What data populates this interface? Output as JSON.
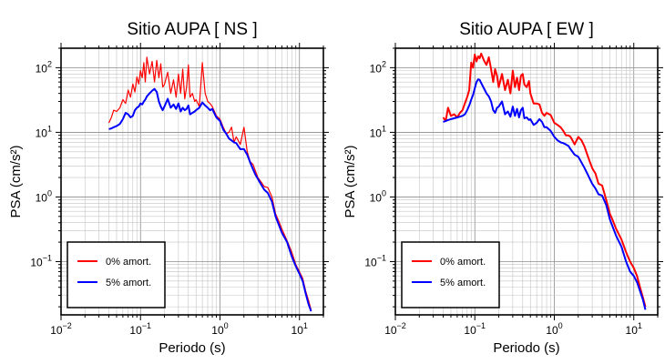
{
  "chart_data": [
    {
      "type": "line",
      "title": "Sitio AUPA [ NS ]",
      "xlabel": "Periodo (s)",
      "ylabel": "PSA (cm/s²)",
      "xscale": "log",
      "yscale": "log",
      "xlim": [
        0.01,
        20
      ],
      "ylim": [
        0.015,
        200
      ],
      "xticks": [
        0.01,
        0.1,
        1,
        10
      ],
      "xtick_labels": [
        [
          "10",
          "−2"
        ],
        [
          "10",
          "−1"
        ],
        [
          "10",
          "0"
        ],
        [
          "10",
          "1"
        ]
      ],
      "yticks": [
        0.1,
        1,
        10,
        100
      ],
      "ytick_labels": [
        [
          "10",
          "−1"
        ],
        [
          "10",
          "0"
        ],
        [
          "10",
          "1"
        ],
        [
          "10",
          "2"
        ]
      ],
      "grid": true,
      "legend_position": "bottom-left",
      "series": [
        {
          "name": "0% amort.",
          "color": "#ff0000",
          "x": [
            0.04,
            0.043,
            0.046,
            0.05,
            0.055,
            0.06,
            0.065,
            0.07,
            0.075,
            0.08,
            0.085,
            0.09,
            0.095,
            0.1,
            0.105,
            0.11,
            0.115,
            0.12,
            0.13,
            0.14,
            0.15,
            0.16,
            0.17,
            0.18,
            0.19,
            0.2,
            0.22,
            0.24,
            0.26,
            0.28,
            0.3,
            0.32,
            0.34,
            0.36,
            0.38,
            0.4,
            0.42,
            0.45,
            0.48,
            0.5,
            0.55,
            0.6,
            0.65,
            0.7,
            0.75,
            0.8,
            0.9,
            1.0,
            1.1,
            1.2,
            1.3,
            1.4,
            1.5,
            1.6,
            1.8,
            2.0,
            2.2,
            2.4,
            2.6,
            2.8,
            3.0,
            3.3,
            3.6,
            4.0,
            4.5,
            5.0,
            5.5,
            6.0,
            7.0,
            8.0,
            9.0,
            10.0,
            11.0,
            12.0,
            13.0,
            14.0
          ],
          "y": [
            14,
            17,
            22,
            21,
            24,
            32,
            28,
            45,
            35,
            56,
            42,
            72,
            56,
            90,
            70,
            120,
            60,
            145,
            80,
            125,
            60,
            130,
            70,
            115,
            50,
            55,
            85,
            40,
            65,
            35,
            80,
            40,
            95,
            33,
            50,
            110,
            35,
            40,
            30,
            32,
            25,
            120,
            40,
            30,
            28,
            25,
            18,
            16,
            12,
            9.5,
            10,
            12,
            7,
            8.5,
            6.5,
            12,
            5,
            3.5,
            3.2,
            2.5,
            2.0,
            1.7,
            1.45,
            1.4,
            1.0,
            0.55,
            0.42,
            0.32,
            0.21,
            0.14,
            0.09,
            0.07,
            0.055,
            0.035,
            0.025,
            0.018
          ]
        },
        {
          "name": "5% amort.",
          "color": "#0000ff",
          "x": [
            0.04,
            0.043,
            0.046,
            0.05,
            0.055,
            0.06,
            0.065,
            0.07,
            0.075,
            0.08,
            0.085,
            0.09,
            0.095,
            0.1,
            0.105,
            0.11,
            0.115,
            0.12,
            0.13,
            0.14,
            0.15,
            0.16,
            0.17,
            0.18,
            0.19,
            0.2,
            0.22,
            0.24,
            0.26,
            0.28,
            0.3,
            0.32,
            0.34,
            0.36,
            0.38,
            0.4,
            0.42,
            0.45,
            0.48,
            0.5,
            0.55,
            0.6,
            0.65,
            0.7,
            0.75,
            0.8,
            0.9,
            1.0,
            1.1,
            1.2,
            1.3,
            1.4,
            1.5,
            1.6,
            1.8,
            2.0,
            2.2,
            2.4,
            2.6,
            2.8,
            3.0,
            3.3,
            3.6,
            4.0,
            4.5,
            5.0,
            5.5,
            6.0,
            7.0,
            8.0,
            9.0,
            10.0,
            11.0,
            12.0,
            13.0,
            14.0
          ],
          "y": [
            11.2,
            11.5,
            12,
            12.5,
            13.5,
            16,
            20,
            19,
            17,
            18,
            22,
            24,
            25,
            28,
            27,
            30,
            32,
            36,
            40,
            44,
            47,
            42,
            30,
            25,
            22,
            25,
            33,
            24,
            27,
            23,
            28,
            21,
            24,
            22,
            23,
            26,
            19,
            20,
            21,
            22,
            24,
            29,
            26,
            24,
            22,
            23,
            17,
            15,
            11,
            9.5,
            8,
            7.5,
            7,
            6.8,
            5.5,
            5.5,
            4.5,
            3.4,
            2.7,
            2.2,
            1.9,
            1.55,
            1.3,
            1.15,
            0.85,
            0.5,
            0.37,
            0.28,
            0.2,
            0.12,
            0.085,
            0.065,
            0.05,
            0.032,
            0.022,
            0.017
          ]
        }
      ]
    },
    {
      "type": "line",
      "title": "Sitio AUPA [ EW ]",
      "xlabel": "Periodo (s)",
      "ylabel": "PSA (cm/s²)",
      "xscale": "log",
      "yscale": "log",
      "xlim": [
        0.01,
        20
      ],
      "ylim": [
        0.015,
        200
      ],
      "xticks": [
        0.01,
        0.1,
        1,
        10
      ],
      "xtick_labels": [
        [
          "10",
          "−2"
        ],
        [
          "10",
          "−1"
        ],
        [
          "10",
          "0"
        ],
        [
          "10",
          "1"
        ]
      ],
      "yticks": [
        0.1,
        1,
        10,
        100
      ],
      "ytick_labels": [
        [
          "10",
          "−1"
        ],
        [
          "10",
          "0"
        ],
        [
          "10",
          "1"
        ],
        [
          "10",
          "2"
        ]
      ],
      "grid": true,
      "legend_position": "bottom-left",
      "series": [
        {
          "name": "0% amort.",
          "color": "#ff0000",
          "x": [
            0.04,
            0.043,
            0.046,
            0.05,
            0.055,
            0.06,
            0.065,
            0.07,
            0.075,
            0.08,
            0.085,
            0.09,
            0.095,
            0.1,
            0.105,
            0.11,
            0.115,
            0.12,
            0.13,
            0.14,
            0.15,
            0.16,
            0.17,
            0.18,
            0.19,
            0.2,
            0.22,
            0.24,
            0.26,
            0.28,
            0.3,
            0.32,
            0.34,
            0.36,
            0.38,
            0.4,
            0.42,
            0.45,
            0.48,
            0.5,
            0.55,
            0.6,
            0.65,
            0.7,
            0.75,
            0.8,
            0.9,
            1.0,
            1.1,
            1.2,
            1.3,
            1.4,
            1.5,
            1.6,
            1.8,
            2.0,
            2.2,
            2.4,
            2.6,
            2.8,
            3.0,
            3.3,
            3.6,
            4.0,
            4.5,
            5.0,
            5.5,
            6.0,
            7.0,
            8.0,
            9.0,
            10.0,
            11.0,
            12.0,
            13.0,
            14.0
          ],
          "y": [
            17,
            15,
            24,
            18,
            19,
            17,
            20,
            22,
            28,
            35,
            45,
            120,
            100,
            160,
            125,
            150,
            140,
            165,
            130,
            110,
            145,
            95,
            60,
            95,
            75,
            50,
            80,
            45,
            65,
            40,
            90,
            50,
            70,
            45,
            75,
            80,
            55,
            50,
            62,
            40,
            28,
            28,
            27,
            20,
            18,
            20,
            18.5,
            14,
            13,
            12,
            10.5,
            9,
            9,
            8.5,
            6.5,
            8.5,
            7.5,
            6,
            4.5,
            3.5,
            2.8,
            2.3,
            1.6,
            1.5,
            0.9,
            0.55,
            0.42,
            0.32,
            0.22,
            0.14,
            0.1,
            0.08,
            0.06,
            0.04,
            0.028,
            0.02
          ]
        },
        {
          "name": "5% amort.",
          "color": "#0000ff",
          "x": [
            0.04,
            0.043,
            0.046,
            0.05,
            0.055,
            0.06,
            0.065,
            0.07,
            0.075,
            0.08,
            0.085,
            0.09,
            0.095,
            0.1,
            0.105,
            0.11,
            0.115,
            0.12,
            0.13,
            0.14,
            0.15,
            0.16,
            0.17,
            0.18,
            0.19,
            0.2,
            0.22,
            0.24,
            0.26,
            0.28,
            0.3,
            0.32,
            0.34,
            0.36,
            0.38,
            0.4,
            0.42,
            0.45,
            0.48,
            0.5,
            0.55,
            0.6,
            0.65,
            0.7,
            0.75,
            0.8,
            0.9,
            1.0,
            1.1,
            1.2,
            1.3,
            1.4,
            1.5,
            1.6,
            1.8,
            2.0,
            2.2,
            2.4,
            2.6,
            2.8,
            3.0,
            3.3,
            3.6,
            4.0,
            4.5,
            5.0,
            5.5,
            6.0,
            7.0,
            8.0,
            9.0,
            10.0,
            11.0,
            12.0,
            13.0,
            14.0
          ],
          "y": [
            14.5,
            15,
            15.5,
            16,
            16.5,
            17,
            17.5,
            18,
            19,
            22,
            26,
            32,
            38,
            48,
            60,
            66,
            65,
            58,
            48,
            40,
            36,
            30,
            22,
            20,
            24,
            25,
            30,
            19,
            21,
            17.5,
            25,
            18,
            23,
            17,
            22,
            24,
            16.5,
            17,
            15.5,
            16,
            13,
            14,
            16,
            14.5,
            12,
            12,
            10.5,
            8.5,
            7.5,
            7,
            6.8,
            6.5,
            6.2,
            5.5,
            4.5,
            4.2,
            3.4,
            2.8,
            2.3,
            1.9,
            1.6,
            1.35,
            1.1,
            1.05,
            0.75,
            0.45,
            0.33,
            0.25,
            0.17,
            0.1,
            0.07,
            0.06,
            0.048,
            0.035,
            0.026,
            0.018
          ]
        }
      ]
    }
  ]
}
